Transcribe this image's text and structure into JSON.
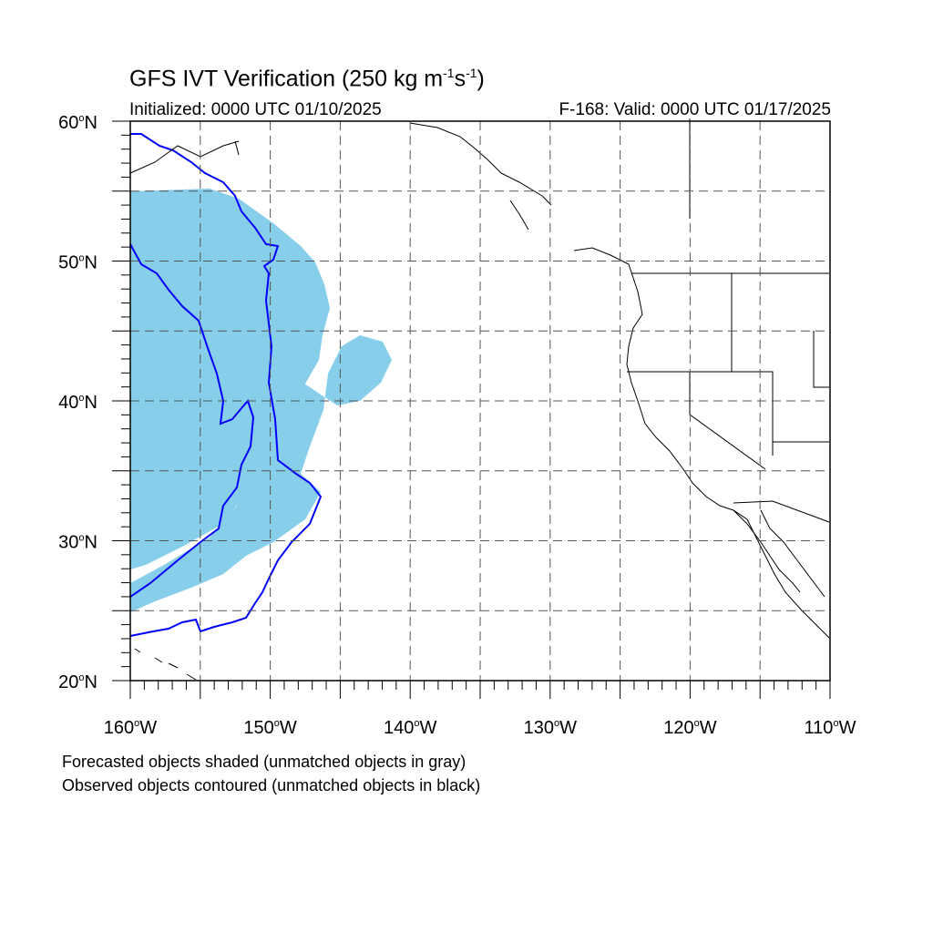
{
  "title": {
    "main": "GFS IVT Verification (250 kg m",
    "exp1": "-1",
    "mid": "s",
    "exp2": "-1",
    "end": ")"
  },
  "subtitle_left": "Initialized: 0000 UTC 01/10/2025",
  "subtitle_right": "F-168: Valid: 0000 UTC 01/17/2025",
  "notes": [
    "Forecasted objects shaded (unmatched objects in gray)",
    "Observed objects contoured (unmatched objects in black)"
  ],
  "axes": {
    "lat_labels": [
      {
        "value": 60,
        "text": "60",
        "hemi": "N"
      },
      {
        "value": 50,
        "text": "50",
        "hemi": "N"
      },
      {
        "value": 40,
        "text": "40",
        "hemi": "N"
      },
      {
        "value": 30,
        "text": "30",
        "hemi": "N"
      },
      {
        "value": 20,
        "text": "20",
        "hemi": "N"
      }
    ],
    "lon_labels": [
      {
        "value": -160,
        "text": "160",
        "hemi": "W"
      },
      {
        "value": -150,
        "text": "150",
        "hemi": "W"
      },
      {
        "value": -140,
        "text": "140",
        "hemi": "W"
      },
      {
        "value": -130,
        "text": "130",
        "hemi": "W"
      },
      {
        "value": -120,
        "text": "120",
        "hemi": "W"
      },
      {
        "value": -110,
        "text": "110",
        "hemi": "W"
      }
    ],
    "lon_range": [
      -160,
      -110
    ],
    "lat_range": [
      20,
      60
    ],
    "grid_spacing_deg": 5,
    "grid": true
  },
  "colors": {
    "forecast_fill": "#87ceeb",
    "observed_contour": "#0000ff",
    "coast": "#000000",
    "grid": "#000000"
  }
}
